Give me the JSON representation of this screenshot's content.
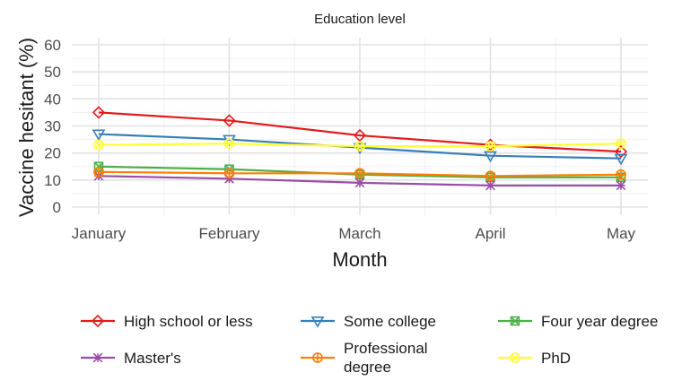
{
  "chart_data": {
    "type": "line",
    "title": "",
    "facet_label": "Education level",
    "xlabel": "Month",
    "ylabel": "Vaccine hesitant (%)",
    "categories": [
      "January",
      "February",
      "March",
      "April",
      "May"
    ],
    "ylim": [
      0,
      60
    ],
    "yticks": [
      0,
      10,
      20,
      30,
      40,
      50,
      60
    ],
    "grid": true,
    "legend_position": "bottom",
    "series": [
      {
        "name": "High school or less",
        "color": "#e41a1c",
        "marker": "diamond",
        "values": [
          35,
          32,
          26.5,
          23,
          20.5
        ]
      },
      {
        "name": "Some college",
        "color": "#377eb8",
        "marker": "triangle-down",
        "values": [
          27,
          25,
          22,
          19,
          18
        ]
      },
      {
        "name": "Four year degree",
        "color": "#4daf4a",
        "marker": "square-x",
        "values": [
          15,
          14,
          12,
          11,
          11
        ]
      },
      {
        "name": "Master's",
        "color": "#984ea3",
        "marker": "asterisk",
        "values": [
          11.5,
          10.5,
          9,
          8,
          8
        ]
      },
      {
        "name": "Professional\ndegree",
        "color": "#ff7f00",
        "marker": "circle-plus",
        "values": [
          13,
          12.5,
          12.5,
          11.5,
          12
        ]
      },
      {
        "name": "PhD",
        "color": "#ffff33",
        "marker": "circle-cross",
        "values": [
          23,
          23.5,
          22.5,
          22.5,
          23.5
        ]
      }
    ]
  }
}
